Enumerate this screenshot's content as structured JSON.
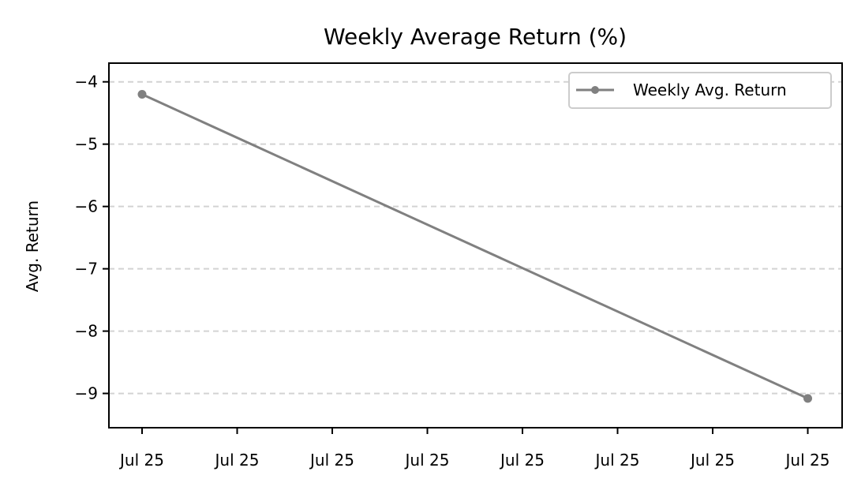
{
  "chart_data": {
    "type": "line",
    "title": "Weekly Average Return (%)",
    "xlabel": "",
    "ylabel": "Avg. Return",
    "x_tick_labels": [
      "Jul 25",
      "Jul 25",
      "Jul 25",
      "Jul 25",
      "Jul 25",
      "Jul 25",
      "Jul 25",
      "Jul 25"
    ],
    "y_ticks": [
      -4,
      -5,
      -6,
      -7,
      -8,
      -9
    ],
    "y_tick_labels": [
      "−4",
      "−5",
      "−6",
      "−7",
      "−8",
      "−9"
    ],
    "ylim": [
      -9.55,
      -3.7
    ],
    "grid": "y-dashed",
    "legend_position": "top-right",
    "series": [
      {
        "name": "Weekly Avg. Return",
        "color": "#808080",
        "marker": "circle",
        "x_index": [
          0,
          7
        ],
        "values": [
          -4.2,
          -9.08
        ]
      }
    ]
  }
}
